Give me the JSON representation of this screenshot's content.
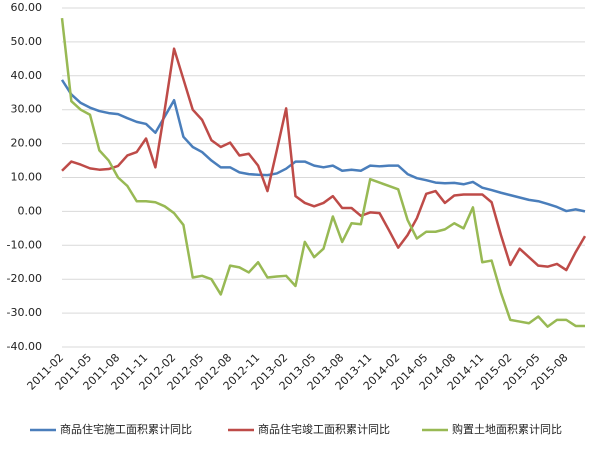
{
  "chart_data": {
    "type": "line",
    "categories": [
      "2011-02",
      null,
      null,
      "2011-05",
      null,
      null,
      "2011-08",
      null,
      null,
      "2011-11",
      null,
      null,
      "2012-02",
      null,
      null,
      "2012-05",
      null,
      null,
      "2012-08",
      null,
      null,
      "2012-11",
      null,
      null,
      "2013-02",
      null,
      null,
      "2013-05",
      null,
      null,
      "2013-08",
      null,
      null,
      "2013-11",
      null,
      null,
      "2014-02",
      null,
      null,
      "2014-05",
      null,
      null,
      "2014-08",
      null,
      null,
      "2014-11",
      null,
      null,
      "2015-02",
      null,
      null,
      "2015-05",
      null,
      null,
      "2015-08",
      null,
      null
    ],
    "series": [
      {
        "name": "商品住宅施工面积累计同比",
        "color": "#4a7ebb",
        "values": [
          38.8,
          34.5,
          32,
          30.6,
          29.6,
          29,
          28.7,
          27.5,
          26.4,
          25.8,
          23.2,
          28,
          32.8,
          22,
          19,
          17.5,
          15,
          13,
          13,
          11.5,
          11,
          10.8,
          10.7,
          11.2,
          12.6,
          14.7,
          14.7,
          13.5,
          13,
          13.5,
          12,
          12.3,
          12,
          13.5,
          13.3,
          13.5,
          13.5,
          11,
          9.8,
          9.2,
          8.5,
          8.3,
          8.4,
          8,
          8.7,
          7,
          6.3,
          5.5,
          4.8,
          4.1,
          3.4,
          3,
          2.2,
          1.3,
          0.1,
          0.6,
          0
        ]
      },
      {
        "name": "商品住宅竣工面积累计同比",
        "color": "#be4b48",
        "values": [
          12,
          14.7,
          13.8,
          12.7,
          12.3,
          12.5,
          13.4,
          16.5,
          17.5,
          21.5,
          13,
          30,
          48,
          39,
          30,
          27,
          21,
          19,
          20.3,
          16.5,
          17,
          13.5,
          6,
          18,
          30.4,
          4.5,
          2.5,
          1.5,
          2.5,
          4.5,
          1,
          1,
          -1.3,
          -0.3,
          -0.5,
          -5.5,
          -10.7,
          -7,
          -2,
          5.2,
          6,
          2.5,
          4.7,
          5,
          5,
          5,
          2.7,
          -7,
          -15.8,
          -11,
          -13.5,
          -16,
          -16.3,
          -15.5,
          -17.3,
          -12,
          -7.3
        ]
      },
      {
        "name": "购置土地面积累计同比",
        "color": "#98b954",
        "values": [
          57,
          32.5,
          30,
          28.5,
          18,
          15,
          10,
          7.5,
          3,
          3,
          2.7,
          1.5,
          -0.5,
          -4,
          -19.5,
          -19,
          -20,
          -24.5,
          -16,
          -16.5,
          -18,
          -15,
          -19.5,
          -19.2,
          -19,
          -22,
          -9,
          -13.5,
          -11,
          -1.5,
          -9,
          -3.5,
          -3.8,
          9.5,
          8.5,
          7.5,
          6.5,
          -2.5,
          -8,
          -6,
          -6,
          -5.3,
          -3.5,
          -5,
          1.2,
          -15,
          -14.5,
          -24,
          -32,
          -32.5,
          -33,
          -31,
          -34,
          -32,
          -32,
          -33.8,
          -33.8
        ]
      }
    ],
    "ylim": [
      -40,
      60
    ],
    "yticks": [
      {
        "value": -40,
        "label": "-40.00"
      },
      {
        "value": -30,
        "label": "-30.00"
      },
      {
        "value": -20,
        "label": "-20.00"
      },
      {
        "value": -10,
        "label": "-10.00"
      },
      {
        "value": 0,
        "label": "0.00"
      },
      {
        "value": 10,
        "label": "10.00"
      },
      {
        "value": 20,
        "label": "20.00"
      },
      {
        "value": 30,
        "label": "30.00"
      },
      {
        "value": 40,
        "label": "40.00"
      },
      {
        "value": 50,
        "label": "50.00"
      },
      {
        "value": 60,
        "label": "60.00"
      }
    ],
    "grid": true,
    "legend": "bottom"
  }
}
